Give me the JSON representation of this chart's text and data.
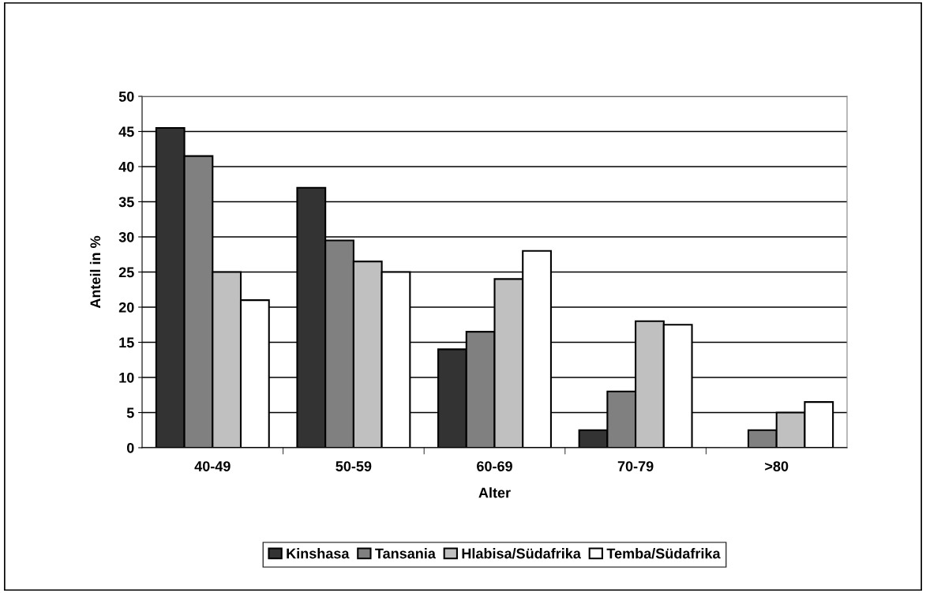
{
  "chart_data": {
    "type": "bar",
    "xlabel": "Alter",
    "ylabel": "Anteil in %",
    "categories": [
      "40-49",
      "50-59",
      "60-69",
      "70-79",
      ">80"
    ],
    "series": [
      {
        "name": "Kinshasa",
        "color": "#333333",
        "values": [
          45.5,
          37,
          14,
          2.5,
          0
        ]
      },
      {
        "name": "Tansania",
        "color": "#808080",
        "values": [
          41.5,
          29.5,
          16.5,
          8,
          2.5
        ]
      },
      {
        "name": "Hlabisa/Südafrika",
        "color": "#c0c0c0",
        "values": [
          25,
          26.5,
          24,
          18,
          5
        ]
      },
      {
        "name": "Temba/Südafrika",
        "color": "#ffffff",
        "values": [
          21,
          25,
          28,
          17.5,
          6.5
        ]
      }
    ],
    "ylim": [
      0,
      50
    ],
    "yticks": [
      0,
      5,
      10,
      15,
      20,
      25,
      30,
      35,
      40,
      45,
      50
    ],
    "grid": "y",
    "legend": "bottom"
  }
}
